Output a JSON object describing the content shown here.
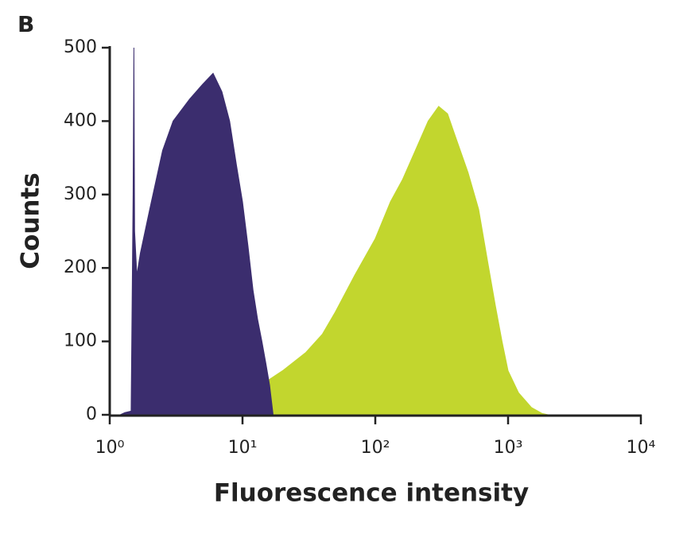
{
  "chart_data": {
    "type": "area",
    "panel_label": "B",
    "x_label": "Fluorescence intensity",
    "y_label": "Counts",
    "log_x": true,
    "xlim": [
      1,
      10000
    ],
    "xticks": [
      {
        "value": 1,
        "label": "10⁰"
      },
      {
        "value": 10,
        "label": "10¹"
      },
      {
        "value": 100,
        "label": "10²"
      },
      {
        "value": 1000,
        "label": "10³"
      },
      {
        "value": 10000,
        "label": "10⁴"
      }
    ],
    "ylim": [
      0,
      500
    ],
    "yticks": [
      0,
      100,
      200,
      300,
      400,
      500
    ],
    "series": [
      {
        "color": "#c2d62e",
        "x": [
          1.45,
          1.5,
          2,
          3,
          5,
          8,
          10,
          15,
          20,
          30,
          40,
          50,
          70,
          100,
          130,
          160,
          200,
          250,
          300,
          350,
          400,
          500,
          600,
          700,
          800,
          900,
          1000,
          1200,
          1500,
          1800,
          2000
        ],
        "values": [
          0,
          15,
          12,
          15,
          20,
          25,
          30,
          45,
          60,
          85,
          110,
          140,
          190,
          240,
          290,
          320,
          360,
          400,
          420,
          410,
          380,
          330,
          280,
          210,
          150,
          100,
          60,
          30,
          10,
          2,
          0
        ]
      },
      {
        "color": "#3b2d6e",
        "x": [
          1.2,
          1.3,
          1.45,
          1.5,
          1.52,
          1.54,
          1.6,
          1.7,
          2,
          2.5,
          3,
          4,
          5,
          6,
          7,
          8,
          9,
          10,
          11,
          12,
          13,
          14,
          15,
          16,
          17
        ],
        "values": [
          0,
          3,
          5,
          300,
          500,
          250,
          190,
          220,
          280,
          360,
          400,
          430,
          450,
          465,
          440,
          400,
          340,
          290,
          230,
          170,
          130,
          100,
          70,
          40,
          0
        ]
      }
    ]
  }
}
